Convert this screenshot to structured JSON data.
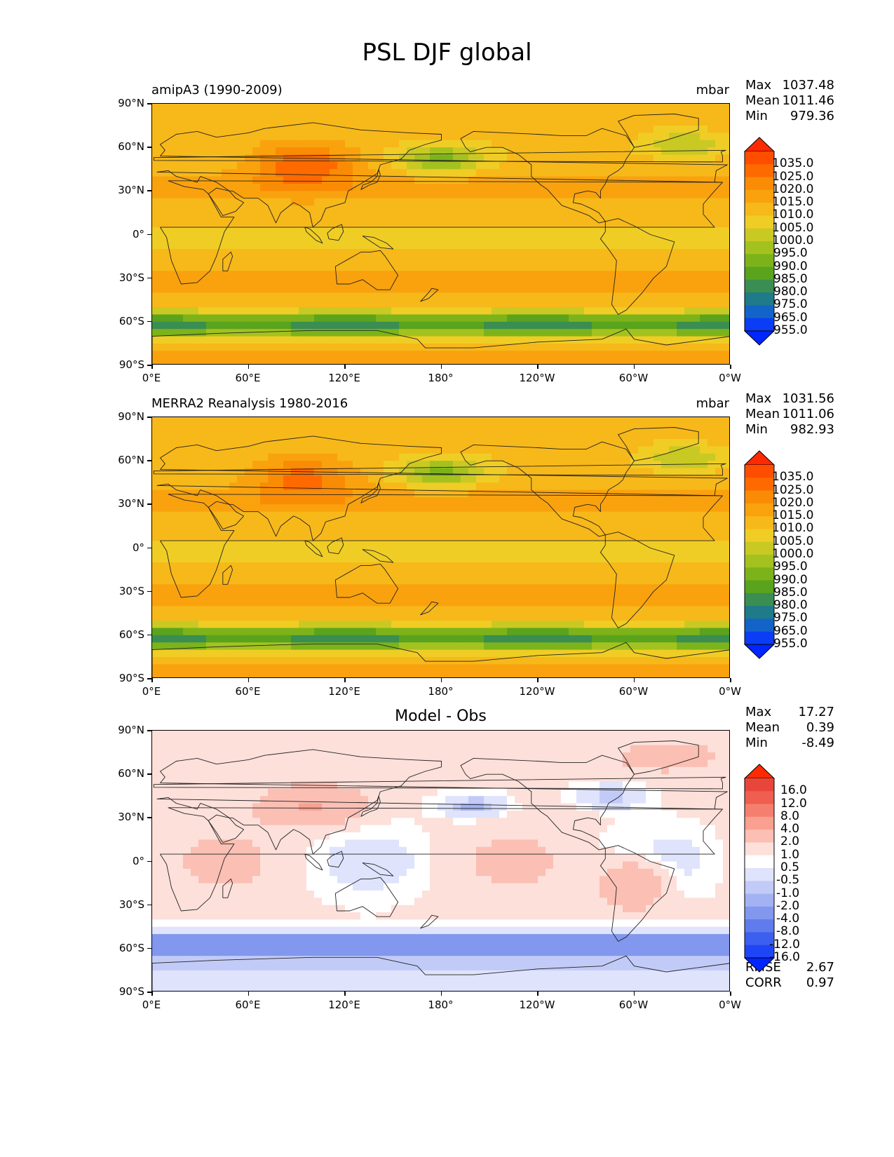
{
  "figure": {
    "title": "PSL DJF global"
  },
  "axes": {
    "y_ticks": [
      "90°N",
      "60°N",
      "30°N",
      "0°",
      "30°S",
      "60°S",
      "90°S"
    ],
    "x_ticks": [
      "0°E",
      "60°E",
      "120°E",
      "180°",
      "120°W",
      "60°W",
      "0°W"
    ]
  },
  "panels": [
    {
      "title_left": "amipA3 (1990-2009)",
      "title_center": "",
      "units": "mbar",
      "stats": [
        {
          "label": "Max",
          "value": "1037.48"
        },
        {
          "label": "Mean",
          "value": "1011.46"
        },
        {
          "label": "Min",
          "value": "979.36"
        }
      ],
      "colorbar_labels": [
        "1035.0",
        "1025.0",
        "1020.0",
        "1015.0",
        "1010.0",
        "1005.0",
        "1000.0",
        "995.0",
        "990.0",
        "985.0",
        "980.0",
        "975.0",
        "965.0",
        "955.0"
      ],
      "colorbar_colors": [
        "#ff2a00",
        "#ff4d00",
        "#ff6a00",
        "#fa8c05",
        "#f9a20e",
        "#f7b81a",
        "#efcd25",
        "#c9c924",
        "#a4c21f",
        "#7db31a",
        "#5aa31d",
        "#3a8e52",
        "#1f7a8a",
        "#1364c8",
        "#0a3df5",
        "#0026ff"
      ],
      "field": {
        "kind": "psl",
        "variant": "model"
      }
    },
    {
      "title_left": "MERRA2 Reanalysis 1980-2016",
      "title_center": "",
      "units": "mbar",
      "stats": [
        {
          "label": "Max",
          "value": "1031.56"
        },
        {
          "label": "Mean",
          "value": "1011.06"
        },
        {
          "label": "Min",
          "value": "982.93"
        }
      ],
      "colorbar_labels": [
        "1035.0",
        "1025.0",
        "1020.0",
        "1015.0",
        "1010.0",
        "1005.0",
        "1000.0",
        "995.0",
        "990.0",
        "985.0",
        "980.0",
        "975.0",
        "965.0",
        "955.0"
      ],
      "colorbar_colors": [
        "#ff2a00",
        "#ff4d00",
        "#ff6a00",
        "#fa8c05",
        "#f9a20e",
        "#f7b81a",
        "#efcd25",
        "#c9c924",
        "#a4c21f",
        "#7db31a",
        "#5aa31d",
        "#3a8e52",
        "#1f7a8a",
        "#1364c8",
        "#0a3df5",
        "#0026ff"
      ],
      "field": {
        "kind": "psl",
        "variant": "obs"
      }
    },
    {
      "title_left": "",
      "title_center": "Model - Obs",
      "units": "",
      "stats": [
        {
          "label": "Max",
          "value": "17.27"
        },
        {
          "label": "Mean",
          "value": "0.39"
        },
        {
          "label": "Min",
          "value": "-8.49"
        }
      ],
      "extra_stats": [
        {
          "label": "RMSE",
          "value": "2.67"
        },
        {
          "label": "CORR",
          "value": "0.97"
        }
      ],
      "colorbar_labels": [
        "16.0",
        "12.0",
        "8.0",
        "4.0",
        "2.0",
        "1.0",
        "0.5",
        "-0.5",
        "-1.0",
        "-2.0",
        "-4.0",
        "-8.0",
        "-12.0",
        "-16.0"
      ],
      "colorbar_colors": [
        "#ff2a00",
        "#e8463a",
        "#ef5e50",
        "#f57f6e",
        "#f9a090",
        "#fbbfb4",
        "#fde0da",
        "#ffffff",
        "#dfe3fb",
        "#c2cbf7",
        "#a3b2f2",
        "#8297ee",
        "#5f7bec",
        "#3c5ff0",
        "#1f46f6",
        "#0026ff"
      ],
      "field": {
        "kind": "diff"
      }
    }
  ]
}
